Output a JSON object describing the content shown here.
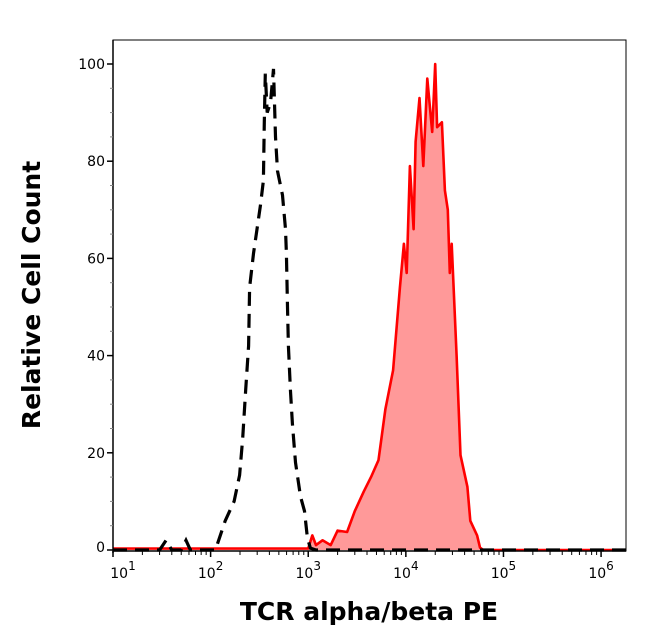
{
  "chart_data": {
    "type": "area",
    "title": "",
    "xlabel": "TCR alpha/beta PE",
    "ylabel": "Relative Cell Count",
    "xscale": "log",
    "xlim": [
      10,
      1800000
    ],
    "ylim": [
      -0.3,
      105
    ],
    "x_tick_labels": [
      {
        "base": "10",
        "exp": "1",
        "value": 10
      },
      {
        "base": "10",
        "exp": "2",
        "value": 100
      },
      {
        "base": "10",
        "exp": "3",
        "value": 1000
      },
      {
        "base": "10",
        "exp": "4",
        "value": 10000
      },
      {
        "base": "10",
        "exp": "5",
        "value": 100000
      },
      {
        "base": "10",
        "exp": "6",
        "value": 1000000
      }
    ],
    "y_tick_labels": [
      "0",
      "20",
      "40",
      "60",
      "80",
      "100"
    ],
    "grid": false,
    "legend": "none",
    "series": [
      {
        "style": "dashed-line",
        "color": "#000000",
        "x": [
          10,
          30,
          35,
          40,
          50,
          56,
          62,
          90,
          112,
          141,
          174,
          198,
          213,
          229,
          245,
          251,
          275,
          309,
          324,
          347,
          355,
          363,
          380,
          411,
          441,
          462,
          484,
          545,
          585,
          598,
          613,
          627,
          657,
          689,
          741,
          834,
          915,
          981,
          1052,
          1200,
          1800000
        ],
        "y": [
          0,
          0,
          2,
          0,
          0,
          2,
          0,
          0,
          0,
          6,
          10,
          15.4,
          23,
          33,
          42,
          54,
          61,
          68,
          71,
          76,
          88,
          98,
          90,
          92,
          99,
          85,
          78,
          73,
          66,
          61,
          50,
          42,
          33,
          26,
          18,
          11,
          8,
          2.5,
          0.4,
          0,
          0
        ]
      },
      {
        "style": "filled-line",
        "color": "#ff0000",
        "fill": "#ff9999",
        "x": [
          10,
          1000,
          1100,
          1200,
          1400,
          1700,
          2000,
          2500,
          3000,
          3700,
          4400,
          5250,
          6170,
          7400,
          8700,
          9550,
          10200,
          11000,
          12000,
          12600,
          13800,
          15100,
          16600,
          18600,
          20000,
          20900,
          23400,
          25100,
          26900,
          28200,
          29500,
          33100,
          36300,
          42700,
          45700,
          53700,
          57500,
          62000,
          1800000
        ],
        "y": [
          0.3,
          0.3,
          3,
          1,
          2,
          1,
          4,
          3.7,
          8,
          12,
          15,
          18.5,
          29,
          37,
          54,
          63,
          57,
          79,
          66,
          84,
          93,
          79,
          97,
          86,
          100,
          87,
          88,
          74,
          70,
          57,
          63,
          40,
          19.5,
          13,
          6,
          3,
          0.5,
          0,
          0
        ]
      }
    ]
  }
}
